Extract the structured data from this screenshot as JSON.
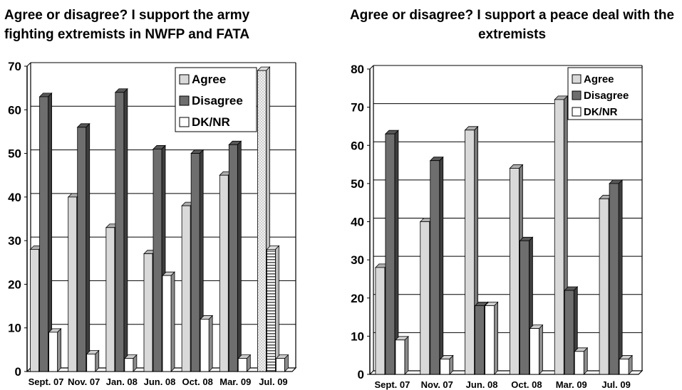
{
  "colors": {
    "agree": "#d9d9d9",
    "disagree": "#6e6e6e",
    "dknr": "#ffffff",
    "grid": "#000000"
  },
  "chart_data": [
    {
      "type": "bar",
      "title": "Agree or disagree? I support the army fighting extremists in NWFP and FATA",
      "categories": [
        "Sept. 07",
        "Nov. 07",
        "Jan. 08",
        "Jun. 08",
        "Oct. 08",
        "Mar. 09",
        "Jul. 09"
      ],
      "series": [
        {
          "name": "Agree",
          "values": [
            28,
            40,
            33,
            27,
            38,
            45,
            69
          ]
        },
        {
          "name": "Disagree",
          "values": [
            63,
            56,
            64,
            51,
            50,
            52,
            28
          ]
        },
        {
          "name": "DK/NR",
          "values": [
            9,
            4,
            3,
            22,
            12,
            3,
            3
          ]
        }
      ],
      "ylim": [
        0,
        70
      ],
      "yticks": [
        "0",
        "10",
        "20",
        "30",
        "40",
        "50",
        "60",
        "70"
      ],
      "grid": true,
      "legend": "top-right"
    },
    {
      "type": "bar",
      "title": "Agree or disagree? I support a peace deal with the extremists",
      "categories": [
        "Sept. 07",
        "Nov. 07",
        "Jun. 08",
        "Oct. 08",
        "Mar. 09",
        "Jul. 09"
      ],
      "series": [
        {
          "name": "Agree",
          "values": [
            28,
            40,
            64,
            54,
            72,
            46
          ]
        },
        {
          "name": "Disagree",
          "values": [
            63,
            56,
            18,
            35,
            22,
            50
          ]
        },
        {
          "name": "DK/NR",
          "values": [
            9,
            4,
            18,
            12,
            6,
            4
          ]
        }
      ],
      "ylim": [
        0,
        80
      ],
      "yticks": [
        "0",
        "10",
        "20",
        "30",
        "40",
        "50",
        "60",
        "70",
        "80"
      ],
      "grid": true,
      "legend": "top-right"
    }
  ]
}
